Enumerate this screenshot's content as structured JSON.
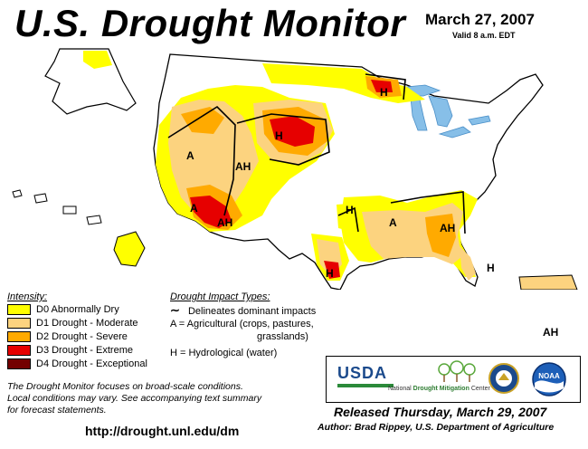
{
  "header": {
    "title": "U.S. Drought Monitor",
    "date": "March 27, 2007",
    "valid": "Valid 8 a.m. EDT"
  },
  "colors": {
    "d0": "#ffff00",
    "d1": "#fcd37f",
    "d2": "#ffaa00",
    "d3": "#e60000",
    "d4": "#730000",
    "water": "#87bfe8"
  },
  "legend": {
    "intensity_title": "Intensity:",
    "items": [
      {
        "code": "d0",
        "label": "D0 Abnormally Dry"
      },
      {
        "code": "d1",
        "label": "D1 Drought - Moderate"
      },
      {
        "code": "d2",
        "label": "D2 Drought - Severe"
      },
      {
        "code": "d3",
        "label": "D3 Drought - Extreme"
      },
      {
        "code": "d4",
        "label": "D4 Drought - Exceptional"
      }
    ]
  },
  "impact": {
    "title": "Drought Impact Types:",
    "line_glyph": "∼",
    "line_label": "Delineates dominant impacts",
    "ag_a": "A = Agricultural (crops, pastures,",
    "ag_b": "grasslands)",
    "hydro": "H = Hydrological (water)"
  },
  "map_labels": {
    "a": "A",
    "ah": "AH",
    "h": "H"
  },
  "note": {
    "line1": "The Drought Monitor focuses on broad-scale conditions.",
    "line2": "Local conditions may vary.  See accompanying text summary",
    "line3": "for forecast statements."
  },
  "url": "http://drought.unl.edu/dm",
  "logos": {
    "usda": "USDA",
    "ndmc_prefix": "National",
    "ndmc_name": "Drought Mitigation",
    "ndmc_suffix": "Center",
    "noaa": "NOAA"
  },
  "released": "Released Thursday, March 29, 2007",
  "author": "Author: Brad Rippey, U.S. Department of Agriculture"
}
